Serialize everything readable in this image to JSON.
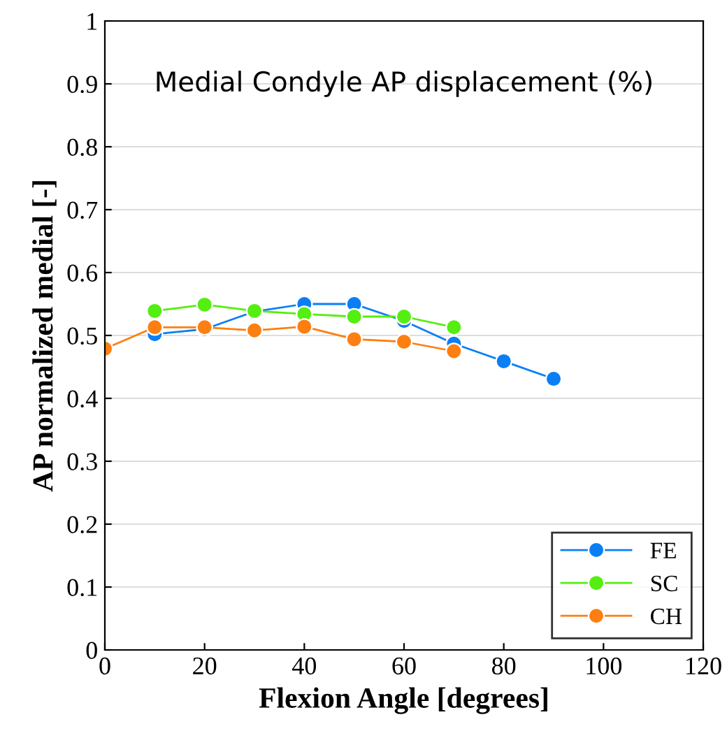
{
  "chart_data": {
    "type": "line",
    "xlabel": "Flexion Angle [degrees]",
    "ylabel": "AP normalized medial [-]",
    "annotations": [
      "Medial Condyle AP displacement (%)"
    ],
    "xlim": [
      0,
      120
    ],
    "xticks": [
      0,
      20,
      40,
      60,
      80,
      100,
      120
    ],
    "ylim": [
      0,
      1
    ],
    "yticks": [
      0,
      0.1,
      0.2,
      0.3,
      0.4,
      0.5,
      0.6,
      0.7,
      0.8,
      0.9,
      1
    ],
    "grid": "y",
    "legend": "bottom right",
    "marker": "circle",
    "line_style": "solid",
    "series": [
      {
        "name": "FE",
        "color": "#0a7ff5",
        "x": [
          10,
          20,
          30,
          40,
          50,
          60,
          70,
          80,
          90
        ],
        "values": [
          0.502,
          0.51,
          0.538,
          0.55,
          0.55,
          0.523,
          0.487,
          0.459,
          0.431
        ]
      },
      {
        "name": "SC",
        "color": "#55ee11",
        "x": [
          10,
          20,
          30,
          40,
          50,
          60,
          70
        ],
        "values": [
          0.539,
          0.549,
          0.539,
          0.534,
          0.53,
          0.53,
          0.513
        ]
      },
      {
        "name": "CH",
        "color": "#fd7f12",
        "x": [
          0,
          10,
          20,
          30,
          40,
          50,
          60,
          70
        ],
        "values": [
          0.479,
          0.513,
          0.513,
          0.508,
          0.514,
          0.494,
          0.49,
          0.475
        ]
      }
    ]
  }
}
